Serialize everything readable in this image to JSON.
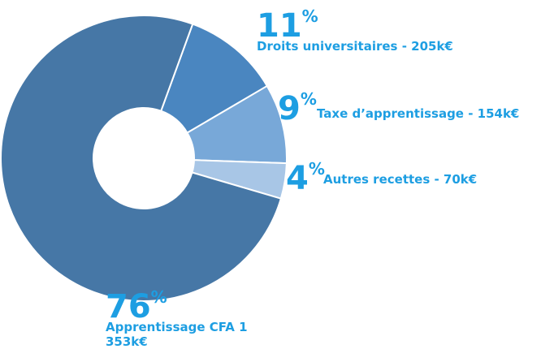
{
  "chart_data": {
    "type": "donut",
    "categories": [
      "Droits universitaires - 205k€",
      "Taxe d’apprentissage - 154k€",
      "Autres recettes - 70k€",
      "Apprentissage CFA 1 353k€"
    ],
    "values": [
      11,
      9,
      4,
      76
    ],
    "value_labels": [
      "11%",
      "9%",
      "4%",
      "76%"
    ],
    "colors": [
      "#4a86c0",
      "#78a8d8",
      "#a8c6e6",
      "#4677a6"
    ]
  }
}
